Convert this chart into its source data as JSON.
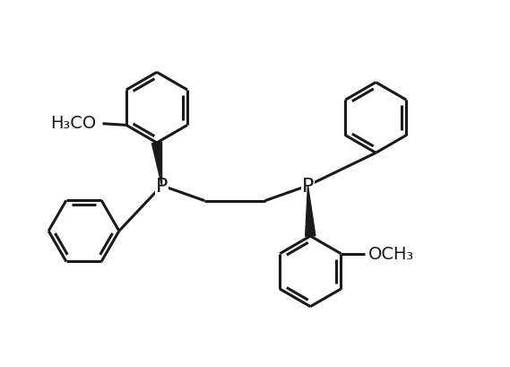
{
  "background_color": "#ffffff",
  "line_color": "#1a1a1a",
  "line_width": 2.2,
  "font_size": 15,
  "figsize": [
    5.69,
    4.1
  ],
  "dpi": 100,
  "xlim": [
    0,
    10
  ],
  "ylim": [
    0,
    7.2
  ]
}
